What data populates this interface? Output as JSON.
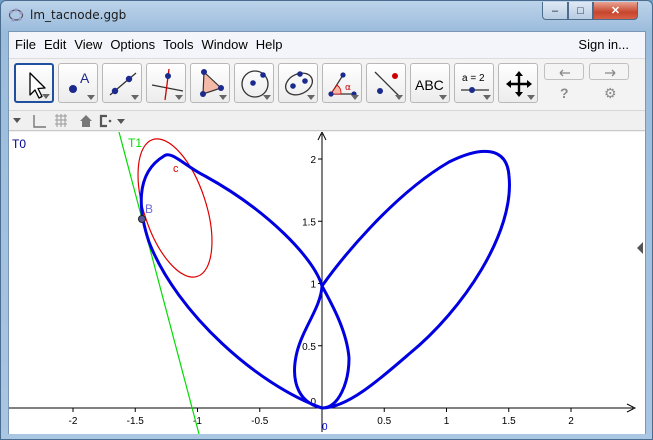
{
  "window": {
    "title": "lm_tacnode.ggb",
    "minimize": "–",
    "maximize": "□",
    "close": "✕"
  },
  "menu": {
    "items": [
      "File",
      "Edit",
      "View",
      "Options",
      "Tools",
      "Window",
      "Help"
    ],
    "signin": "Sign in..."
  },
  "toolbar": {
    "tools": [
      {
        "name": "move-tool",
        "icon": "pointer-arrow-icon"
      },
      {
        "name": "point-tool",
        "icon": "point-A-icon",
        "label": "A"
      },
      {
        "name": "line-tool",
        "icon": "line-through-two-points-icon"
      },
      {
        "name": "perpendicular-line-tool",
        "icon": "perpendicular-line-icon"
      },
      {
        "name": "polygon-tool",
        "icon": "polygon-icon"
      },
      {
        "name": "circle-tool",
        "icon": "circle-center-point-icon"
      },
      {
        "name": "ellipse-tool",
        "icon": "ellipse-icon"
      },
      {
        "name": "angle-tool",
        "icon": "angle-icon",
        "label": "α"
      },
      {
        "name": "reflect-tool",
        "icon": "reflect-about-line-icon"
      },
      {
        "name": "text-tool",
        "icon": "text-icon",
        "label": "ABC"
      },
      {
        "name": "slider-tool",
        "icon": "slider-icon",
        "label": "a = 2"
      },
      {
        "name": "move-view-tool",
        "icon": "move-graphics-view-icon"
      }
    ],
    "undo_icon": "undo-icon",
    "redo_icon": "redo-icon",
    "help_label": "?",
    "settings_label": "⚙"
  },
  "graphics": {
    "labels": {
      "T0": "T0",
      "T1": "T1",
      "B": "B",
      "c": "c",
      "origin": "0"
    },
    "x_ticks": [
      "-2",
      "-1.5",
      "-1",
      "-0.5",
      "0",
      "0.5",
      "1",
      "1.5",
      "2"
    ],
    "y_ticks": [
      "0",
      "0.5",
      "1",
      "1.5",
      "2"
    ],
    "colors": {
      "curve": "#0000e0",
      "circle": "#e00000",
      "tangent": "#00dd00",
      "axis": "#000000",
      "T0_label": "#00008b",
      "B_label": "#6b6bd8"
    }
  }
}
